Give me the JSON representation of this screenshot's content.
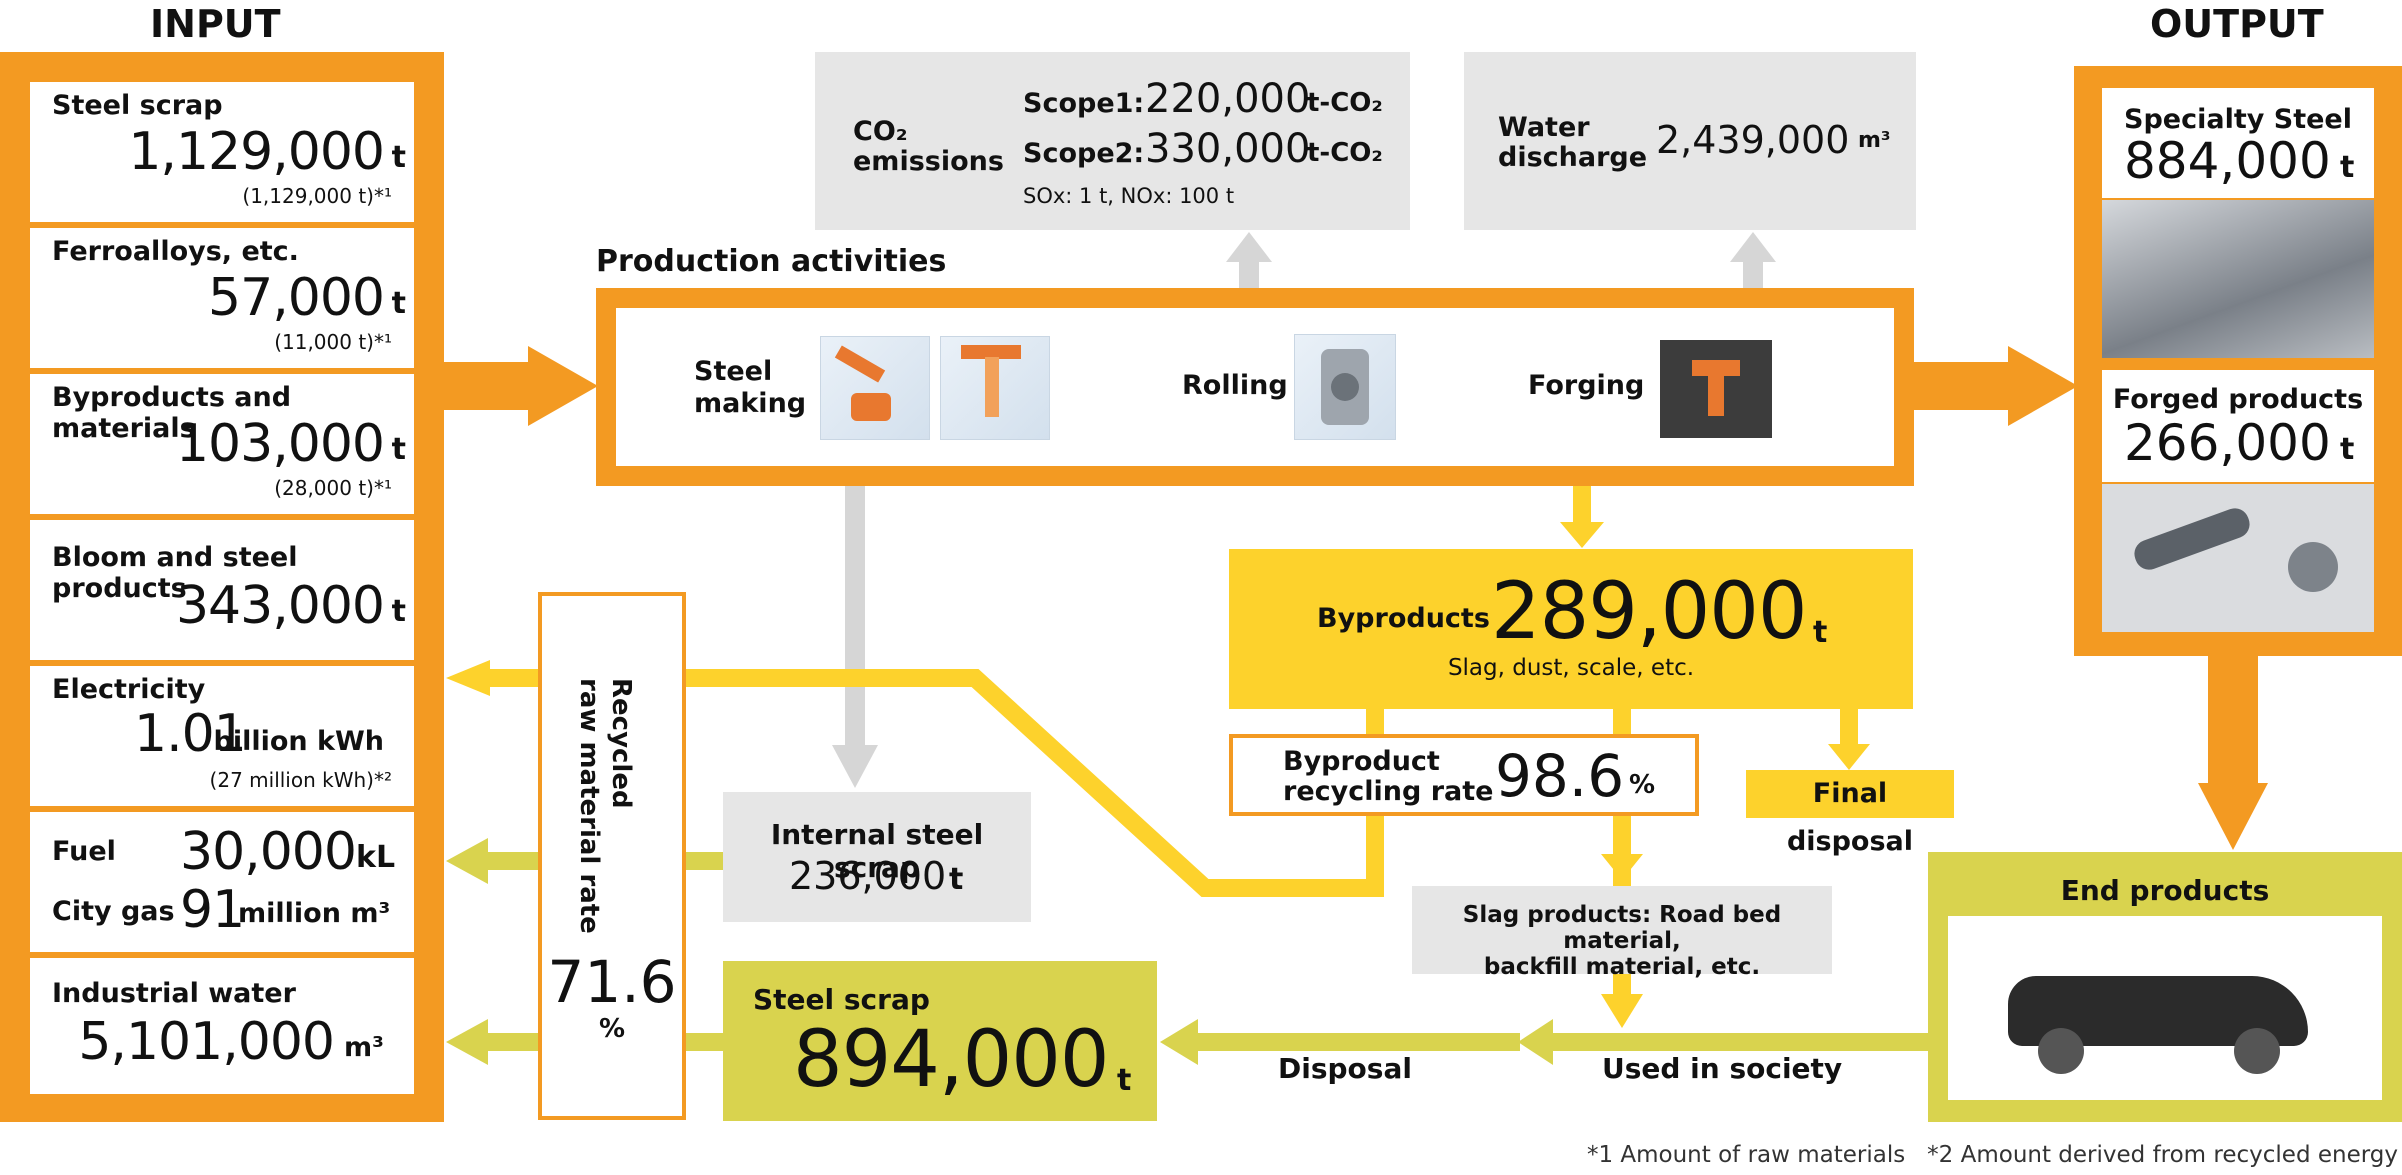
{
  "titles": {
    "input": "INPUT",
    "output": "OUTPUT"
  },
  "inputs": {
    "steel_scrap": {
      "label": "Steel scrap",
      "value": "1,129,000",
      "unit": "t",
      "note": "(1,129,000 t)*¹"
    },
    "ferroalloys": {
      "label": "Ferroalloys, etc.",
      "value": "57,000",
      "unit": "t",
      "note": "(11,000 t)*¹"
    },
    "byproducts_materials": {
      "label": "Byproducts and materials",
      "value": "103,000",
      "unit": "t",
      "note": "(28,000 t)*¹"
    },
    "bloom": {
      "label": "Bloom and steel products",
      "value": "343,000",
      "unit": "t"
    },
    "electricity": {
      "label": "Electricity",
      "value": "1.01",
      "unit": "billion kWh",
      "note": "(27 million kWh)*²"
    },
    "fuel": {
      "label": "Fuel",
      "value": "30,000",
      "unit": "kL"
    },
    "city_gas": {
      "label": "City gas",
      "value": "91",
      "unit": "million m³"
    },
    "industrial_water": {
      "label": "Industrial water",
      "value": "5,101,000",
      "unit": "m³"
    }
  },
  "emissions": {
    "co2_label_1": "CO₂",
    "co2_label_2": "emissions",
    "scope1_label": "Scope1:",
    "scope1_value": "220,000",
    "scope1_unit": "t-CO₂",
    "scope2_label": "Scope2:",
    "scope2_value": "330,000",
    "scope2_unit": "t-CO₂",
    "sox_nox": "SOx: 1 t, NOx: 100 t"
  },
  "water_discharge": {
    "label_1": "Water",
    "label_2": "discharge",
    "value": "2,439,000",
    "unit": "m³"
  },
  "production": {
    "title": "Production activities",
    "steelmaking_1": "Steel",
    "steelmaking_2": "making",
    "rolling": "Rolling",
    "forging": "Forging"
  },
  "outputs": {
    "specialty_steel": {
      "label": "Specialty Steel",
      "value": "884,000",
      "unit": "t"
    },
    "forged_products": {
      "label": "Forged products",
      "value": "266,000",
      "unit": "t"
    }
  },
  "byproducts": {
    "label": "Byproducts",
    "value": "289,000",
    "unit": "t",
    "sub": "Slag, dust, scale, etc."
  },
  "recycling": {
    "label_1": "Byproduct",
    "label_2": "recycling rate",
    "value": "98.6",
    "unit": "%"
  },
  "final_disposal": "Final disposal",
  "slag_products": {
    "line_1": "Slag products: Road bed material,",
    "line_2": "backfill material, etc."
  },
  "recycled_rate": {
    "label_1": "Recycled",
    "label_2": "raw material rate",
    "value": "71.6",
    "unit": "%"
  },
  "internal_scrap": {
    "label": "Internal steel scrap",
    "value": "236,000",
    "unit": "t"
  },
  "steel_scrap_out": {
    "label": "Steel scrap",
    "value": "894,000",
    "unit": "t"
  },
  "disposal": "Disposal",
  "used_in_society": "Used in society",
  "end_products": "End products",
  "footnote": "*1 Amount of raw materials   *2 Amount derived from recycled energy",
  "colors": {
    "orange": "#f39a22",
    "yellow": "#fdd22c",
    "olive": "#d9d34e",
    "gray": "#e6e6e6"
  }
}
